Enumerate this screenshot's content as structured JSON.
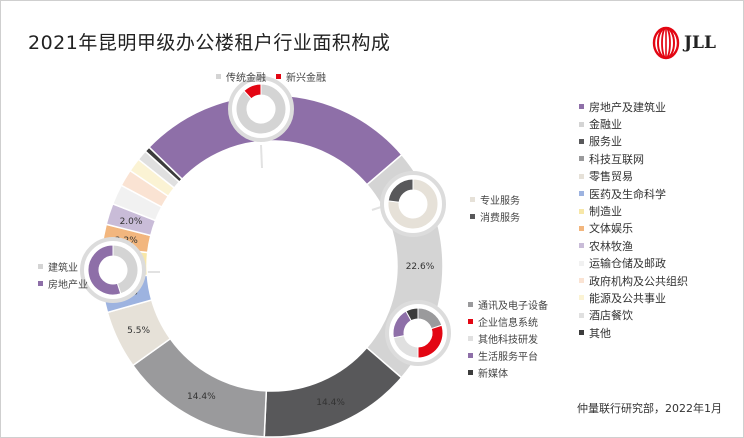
{
  "title": "2021年昆明甲级办公楼租户行业面积构成",
  "logo": {
    "text": "JLL",
    "color": "#e30613"
  },
  "source": "仲量联行研究部，2022年1月",
  "chart_data": [
    {
      "type": "pie",
      "style": "donut",
      "title": "2021年昆明甲级办公楼租户行业面积构成",
      "categories": [
        "房地产及建筑业",
        "金融业",
        "服务业",
        "科技互联网",
        "零售贸易",
        "医药及生命科学",
        "制造业",
        "文体娱乐",
        "农林牧渔",
        "运输仓储及邮政",
        "政府机构及公共组织",
        "能源及公共事业",
        "酒店餐饮",
        "其他"
      ],
      "values": [
        26.5,
        22.6,
        14.4,
        14.4,
        5.5,
        3.2,
        2.9,
        2.2,
        2.0,
        1.9,
        1.6,
        1.3,
        1.0,
        0.5
      ],
      "data_labels": [
        "26.5%",
        "22.6%",
        "14.4%",
        "14.4%",
        "5.5%",
        "3.2%",
        "2.9%",
        "2.2%",
        "2.0%",
        "",
        "",
        "",
        "",
        ""
      ],
      "colors": [
        "#8e6fa8",
        "#d4d4d4",
        "#58585a",
        "#9a9a9c",
        "#e6e1d8",
        "#9db3e0",
        "#f7e7a8",
        "#f2b67e",
        "#c9bcd8",
        "#f1f1f1",
        "#fae3d3",
        "#fbf3d4",
        "#e0e0e0",
        "#3c3c3c"
      ],
      "legend_position": "right"
    },
    {
      "type": "pie",
      "style": "donut",
      "categories": [
        "传统金融",
        "新兴金融"
      ],
      "values": [
        88,
        12
      ],
      "colors": [
        "#d4d4d4",
        "#e30613"
      ],
      "legend_position": "top"
    },
    {
      "type": "pie",
      "style": "donut",
      "categories": [
        "专业服务",
        "消费服务"
      ],
      "values": [
        77,
        23
      ],
      "colors": [
        "#e6e1d8",
        "#58585a"
      ],
      "legend_position": "right"
    },
    {
      "type": "pie",
      "style": "donut",
      "categories": [
        "建筑业",
        "房地产业"
      ],
      "values": [
        45,
        55
      ],
      "colors": [
        "#d4d4d4",
        "#8e6fa8"
      ],
      "legend_position": "left"
    },
    {
      "type": "pie",
      "style": "donut",
      "categories": [
        "通讯及电子设备",
        "企业信息系统",
        "其他科技研发",
        "生活服务平台",
        "新媒体"
      ],
      "values": [
        20,
        30,
        22,
        20,
        8
      ],
      "colors": [
        "#9a9a9c",
        "#e30613",
        "#e0e0e0",
        "#8e6fa8",
        "#3c3c3c"
      ],
      "legend_position": "right"
    }
  ]
}
